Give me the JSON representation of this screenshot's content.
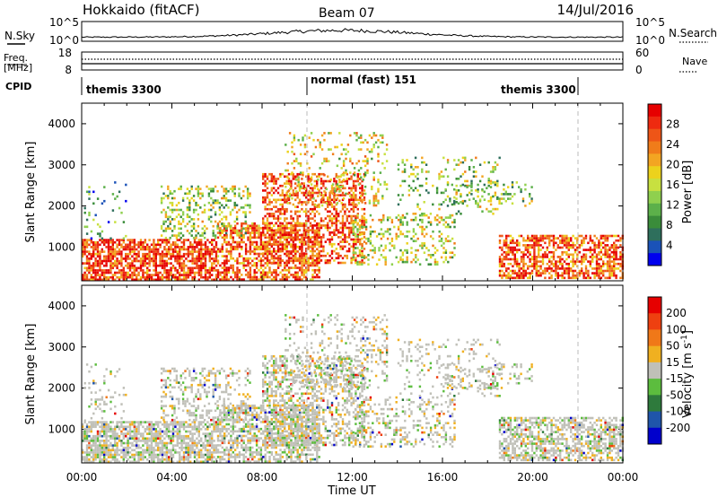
{
  "header": {
    "station": "Hokkaido (fitACF)",
    "beam": "Beam 07",
    "date": "14/Jul/2016"
  },
  "noise_panel": {
    "left_label": "N.Sky",
    "right_label": "N.Search",
    "left_ticks": [
      "10^5",
      "10^0"
    ],
    "right_ticks": [
      "10^5",
      "10^0"
    ]
  },
  "freq_panel": {
    "left_label_top": "Freq.",
    "left_label_bottom": "[MHz]",
    "left_ticks": [
      "18",
      "8"
    ],
    "right_label": "Nave",
    "right_ticks": [
      "60",
      "0"
    ]
  },
  "cpid_panel": {
    "label": "CPID",
    "segments": [
      {
        "start": "00:00",
        "end": "10:00",
        "label": "themis 3300"
      },
      {
        "start": "10:00",
        "end": "22:00",
        "label": "normal (fast) 151"
      },
      {
        "start": "22:00",
        "end": "24:00",
        "label": "themis 3300"
      }
    ]
  },
  "x_axis": {
    "label": "Time UT",
    "ticks": [
      "00:00",
      "04:00",
      "08:00",
      "12:00",
      "16:00",
      "20:00",
      "00:00"
    ]
  },
  "chart_data": [
    {
      "type": "heatmap",
      "title": "Power",
      "ylabel": "Slant Range [km]",
      "xlabel": "Time UT",
      "xlim_hours": [
        0,
        24
      ],
      "ylim": [
        180,
        4500
      ],
      "yticks": [
        1000,
        2000,
        3000,
        4000
      ],
      "colorbar": {
        "label": "Power [dB]",
        "ticks": [
          "28",
          "24",
          "20",
          "16",
          "12",
          "8",
          "4"
        ],
        "colors": [
          "#0000ee",
          "#1a52b8",
          "#2e6f5c",
          "#3a8c3a",
          "#5cb04a",
          "#8fd04e",
          "#c8e040",
          "#ecd21c",
          "#f3a522",
          "#f07c1a",
          "#ee5517",
          "#ee2a10",
          "#e60000"
        ]
      },
      "clusters": [
        {
          "t0": 0.0,
          "t1": 6.0,
          "r0": 200,
          "r1": 1200,
          "level": 0.85,
          "density": 0.72
        },
        {
          "t0": 6.0,
          "t1": 10.5,
          "r0": 200,
          "r1": 1600,
          "level": 0.78,
          "density": 0.6
        },
        {
          "t0": 8.0,
          "t1": 12.5,
          "r0": 600,
          "r1": 2800,
          "level": 0.82,
          "density": 0.45
        },
        {
          "t0": 9.0,
          "t1": 13.5,
          "r0": 2000,
          "r1": 3800,
          "level": 0.55,
          "density": 0.18
        },
        {
          "t0": 3.5,
          "t1": 7.5,
          "r0": 1200,
          "r1": 2500,
          "level": 0.45,
          "density": 0.3
        },
        {
          "t0": 12.0,
          "t1": 16.5,
          "r0": 600,
          "r1": 1800,
          "level": 0.5,
          "density": 0.25
        },
        {
          "t0": 14.0,
          "t1": 18.5,
          "r0": 1800,
          "r1": 3200,
          "level": 0.45,
          "density": 0.15
        },
        {
          "t0": 18.5,
          "t1": 24.0,
          "r0": 250,
          "r1": 1300,
          "level": 0.8,
          "density": 0.6
        },
        {
          "t0": 16.0,
          "t1": 20.0,
          "r0": 2000,
          "r1": 2600,
          "level": 0.4,
          "density": 0.2
        },
        {
          "t0": 0.1,
          "t1": 2.0,
          "r0": 1200,
          "r1": 2600,
          "level": 0.3,
          "density": 0.12
        }
      ]
    },
    {
      "type": "heatmap",
      "title": "Velocity",
      "ylabel": "Slant Range [km]",
      "xlabel": "Time UT",
      "xlim_hours": [
        0,
        24
      ],
      "ylim": [
        180,
        4500
      ],
      "yticks": [
        1000,
        2000,
        3000,
        4000
      ],
      "colorbar": {
        "label": "Velocity [m s^-1]",
        "ticks": [
          "200",
          "100",
          "50",
          "15",
          "-15",
          "-50",
          "-100",
          "-200"
        ],
        "colors": [
          "#0000cc",
          "#1f55aa",
          "#2e7a3c",
          "#5cbd3e",
          "#c0c0b8",
          "#f0b020",
          "#f07818",
          "#ee4010",
          "#e60000"
        ]
      },
      "clusters": [
        {
          "t0": 0.0,
          "t1": 6.0,
          "r0": 200,
          "r1": 1200,
          "level": 0.5,
          "density": 0.72
        },
        {
          "t0": 6.0,
          "t1": 10.5,
          "r0": 200,
          "r1": 1600,
          "level": 0.5,
          "density": 0.6
        },
        {
          "t0": 8.0,
          "t1": 12.5,
          "r0": 600,
          "r1": 2800,
          "level": 0.5,
          "density": 0.45
        },
        {
          "t0": 9.0,
          "t1": 13.5,
          "r0": 2000,
          "r1": 3800,
          "level": 0.5,
          "density": 0.18
        },
        {
          "t0": 3.5,
          "t1": 7.5,
          "r0": 1200,
          "r1": 2500,
          "level": 0.5,
          "density": 0.3
        },
        {
          "t0": 12.0,
          "t1": 16.5,
          "r0": 600,
          "r1": 1800,
          "level": 0.5,
          "density": 0.25
        },
        {
          "t0": 14.0,
          "t1": 18.5,
          "r0": 1800,
          "r1": 3200,
          "level": 0.55,
          "density": 0.15
        },
        {
          "t0": 18.5,
          "t1": 24.0,
          "r0": 250,
          "r1": 1300,
          "level": 0.5,
          "density": 0.6
        },
        {
          "t0": 16.0,
          "t1": 20.0,
          "r0": 2000,
          "r1": 2600,
          "level": 0.6,
          "density": 0.2
        },
        {
          "t0": 0.1,
          "t1": 2.0,
          "r0": 1200,
          "r1": 2600,
          "level": 0.5,
          "density": 0.12
        }
      ]
    }
  ]
}
